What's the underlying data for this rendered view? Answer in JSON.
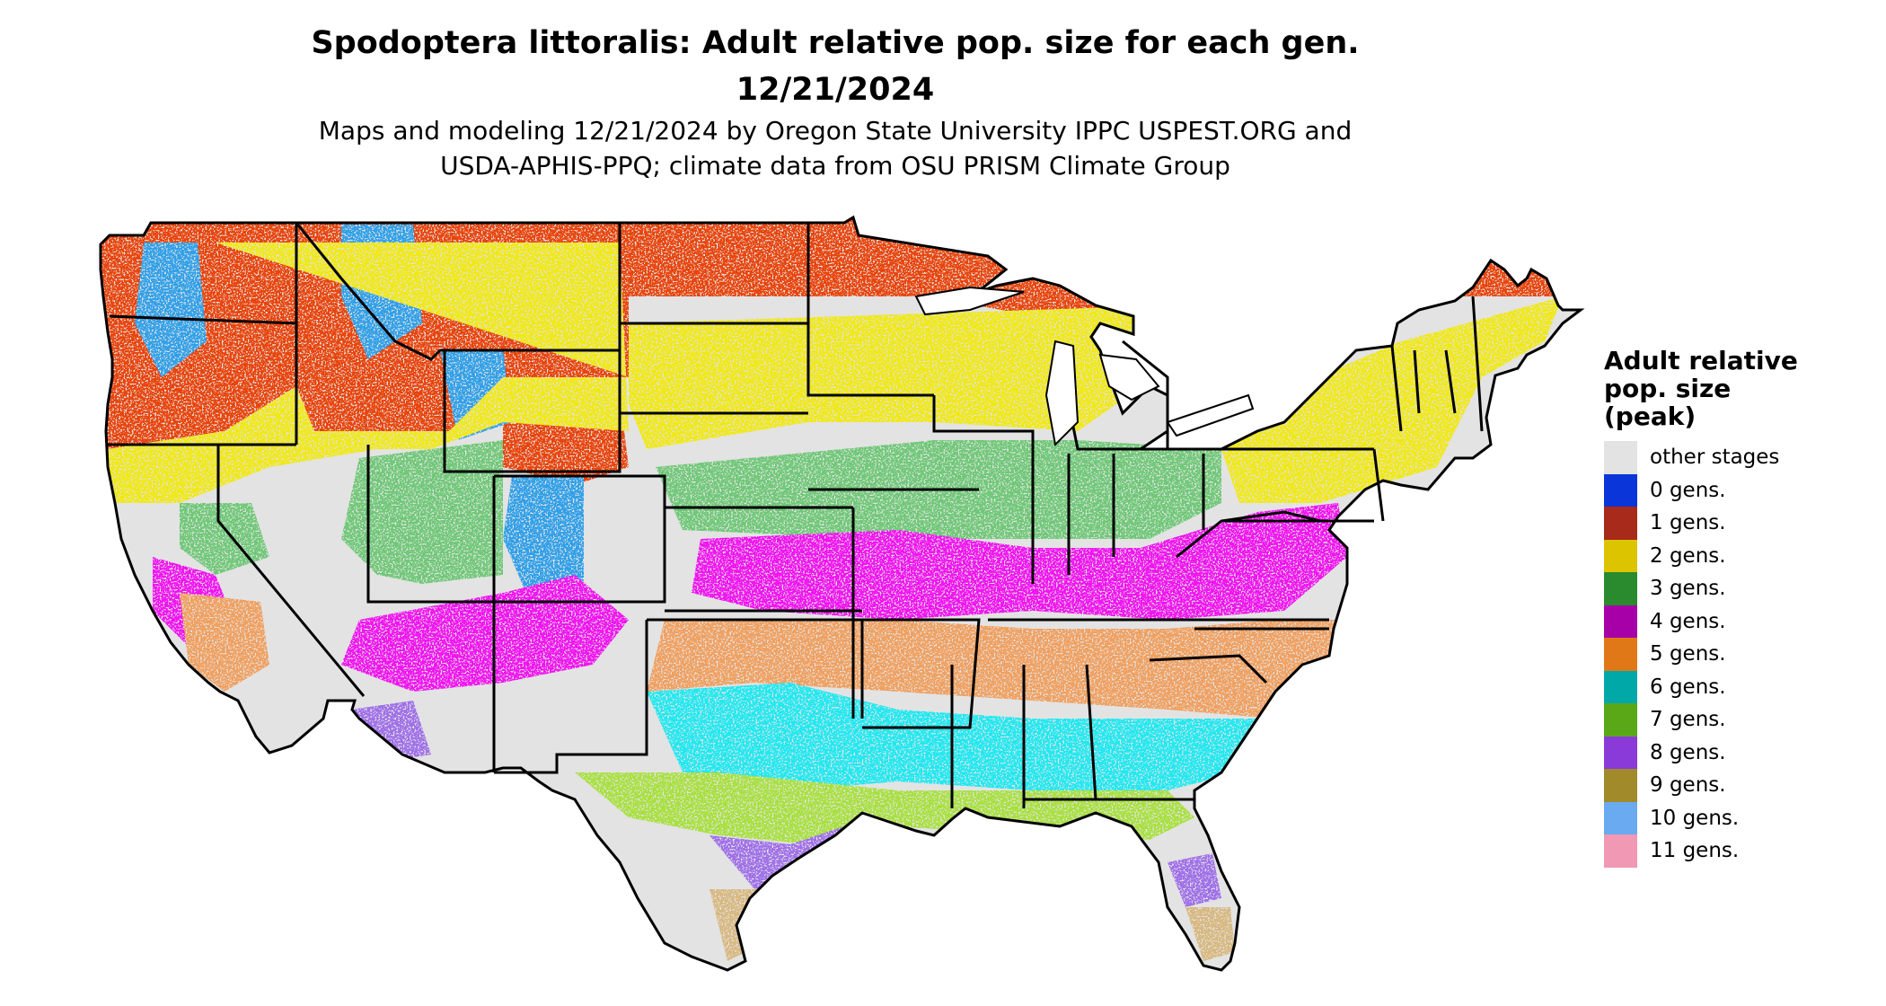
{
  "title_line1": "Spodoptera littoralis: Adult relative pop. size for each gen.",
  "title_line2": "12/21/2024",
  "subtitle_line1": "Maps and modeling 12/21/2024 by Oregon State University IPPC USPEST.ORG and",
  "subtitle_line2": "USDA-APHIS-PPQ; climate data from OSU PRISM Climate Group",
  "legend": {
    "title_line1": "Adult relative",
    "title_line2": "pop. size",
    "title_line3": "(peak)",
    "items": [
      {
        "label": "other stages",
        "color": "#e3e3e3"
      },
      {
        "label": "0 gens.",
        "color": "#0a35d8"
      },
      {
        "label": "1 gens.",
        "color": "#a82a1a"
      },
      {
        "label": "2 gens.",
        "color": "#dcc400"
      },
      {
        "label": "3 gens.",
        "color": "#2a8a2e"
      },
      {
        "label": "4 gens.",
        "color": "#a800a8"
      },
      {
        "label": "5 gens.",
        "color": "#e07818"
      },
      {
        "label": "6 gens.",
        "color": "#00a8a8"
      },
      {
        "label": "7 gens.",
        "color": "#5aa818"
      },
      {
        "label": "8 gens.",
        "color": "#8a3ad8"
      },
      {
        "label": "9 gens.",
        "color": "#a08a2a"
      },
      {
        "label": "10 gens.",
        "color": "#6aaaf0"
      },
      {
        "label": "11 gens.",
        "color": "#f098b4"
      }
    ]
  },
  "map_fill_colors": {
    "background_other": "#e3e3e3",
    "gen1": "#e84410",
    "gen2": "#f0e818",
    "gen3": "#70c878",
    "gen4": "#f018f0",
    "gen5": "#f0a060",
    "gen6": "#20e8f0",
    "gen7": "#a8e040",
    "gen8": "#a070e8",
    "gen9": "#d8b880",
    "gen0_blue": "#30a0e8",
    "border": "#000000"
  }
}
